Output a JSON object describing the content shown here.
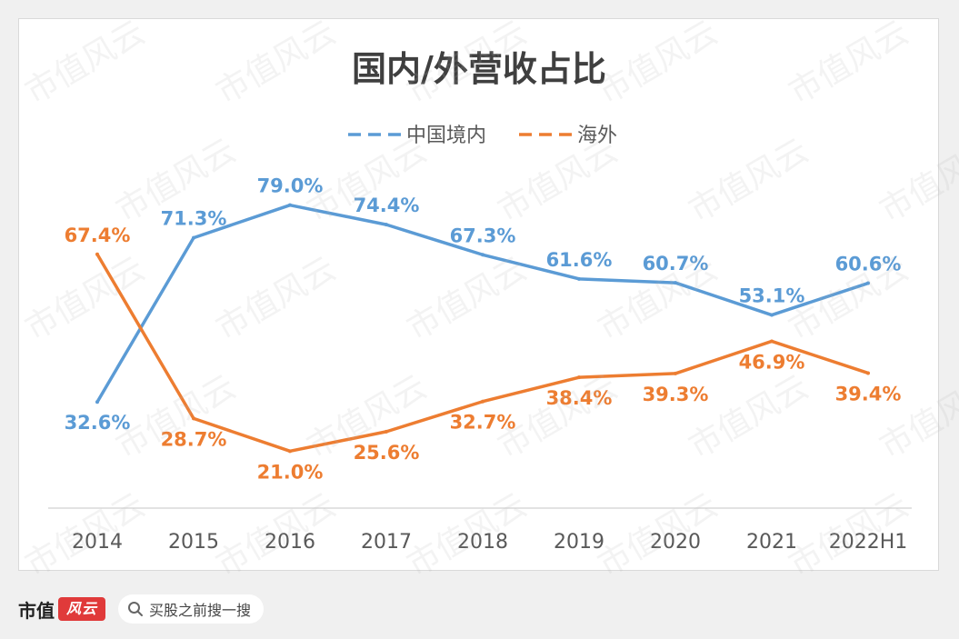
{
  "chart_data": {
    "type": "line",
    "title": "国内/外营收占比",
    "categories": [
      "2014",
      "2015",
      "2016",
      "2017",
      "2018",
      "2019",
      "2020",
      "2021",
      "2022H1"
    ],
    "series": [
      {
        "name": "中国境内",
        "color": "#5b9bd5",
        "values": [
          32.6,
          71.3,
          79.0,
          74.4,
          67.3,
          61.6,
          60.7,
          53.1,
          60.6
        ],
        "labels": [
          "32.6%",
          "71.3%",
          "79.0%",
          "74.4%",
          "67.3%",
          "61.6%",
          "60.7%",
          "53.1%",
          "60.6%"
        ]
      },
      {
        "name": "海外",
        "color": "#ed7d31",
        "values": [
          67.4,
          28.7,
          21.0,
          25.6,
          32.7,
          38.4,
          39.3,
          46.9,
          39.4
        ],
        "labels": [
          "67.4%",
          "28.7%",
          "21.0%",
          "25.6%",
          "32.7%",
          "38.4%",
          "39.3%",
          "46.9%",
          "39.4%"
        ]
      }
    ],
    "ylim": [
      0,
      100
    ],
    "grid": false,
    "legend_position": "top",
    "legend_line_style": "dashed"
  },
  "footer": {
    "brand_text": "市值",
    "brand_logo_text": "风云",
    "search_icon": "search-icon",
    "search_text": "买股之前搜一搜"
  },
  "watermark": {
    "text": "市值风云"
  }
}
